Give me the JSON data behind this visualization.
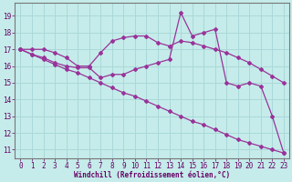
{
  "xlabel": "Windchill (Refroidissement éolien,°C)",
  "background_color": "#c5ecea",
  "line_color": "#993399",
  "grid_color": "#aad8d8",
  "xlim": [
    -0.5,
    23.5
  ],
  "ylim": [
    10.5,
    19.8
  ],
  "yticks": [
    11,
    12,
    13,
    14,
    15,
    16,
    17,
    18,
    19
  ],
  "xticks": [
    0,
    1,
    2,
    3,
    4,
    5,
    6,
    7,
    8,
    9,
    10,
    11,
    12,
    13,
    14,
    15,
    16,
    17,
    18,
    19,
    20,
    21,
    22,
    23
  ],
  "line1_x": [
    0,
    1,
    2,
    3,
    4,
    5,
    6,
    7,
    8,
    9,
    10,
    11,
    12,
    13,
    14,
    15,
    16,
    17,
    18,
    19,
    20,
    21,
    22,
    23
  ],
  "line1_y": [
    17.0,
    17.0,
    17.0,
    16.8,
    16.5,
    16.0,
    16.0,
    16.8,
    17.5,
    17.7,
    17.8,
    17.8,
    17.4,
    17.2,
    17.5,
    17.4,
    17.2,
    17.0,
    16.8,
    16.5,
    16.2,
    15.8,
    15.4,
    15.0
  ],
  "line2_x": [
    0,
    1,
    2,
    3,
    4,
    5,
    6,
    7,
    8,
    9,
    10,
    11,
    12,
    13,
    14,
    15,
    16,
    17,
    18,
    19,
    20,
    21,
    22,
    23
  ],
  "line2_y": [
    17.0,
    16.7,
    16.5,
    16.2,
    16.0,
    15.9,
    15.9,
    15.3,
    15.5,
    15.5,
    15.8,
    16.0,
    16.2,
    16.4,
    19.2,
    17.8,
    18.0,
    18.2,
    15.0,
    14.8,
    15.0,
    14.8,
    13.0,
    10.8
  ],
  "line3_x": [
    0,
    1,
    2,
    3,
    4,
    5,
    6,
    7,
    8,
    9,
    10,
    11,
    12,
    13,
    14,
    15,
    16,
    17,
    18,
    19,
    20,
    21,
    22,
    23
  ],
  "line3_y": [
    17.0,
    16.7,
    16.4,
    16.1,
    15.8,
    15.6,
    15.3,
    15.0,
    14.7,
    14.4,
    14.2,
    13.9,
    13.6,
    13.3,
    13.0,
    12.7,
    12.5,
    12.2,
    11.9,
    11.6,
    11.4,
    11.2,
    11.0,
    10.8
  ]
}
